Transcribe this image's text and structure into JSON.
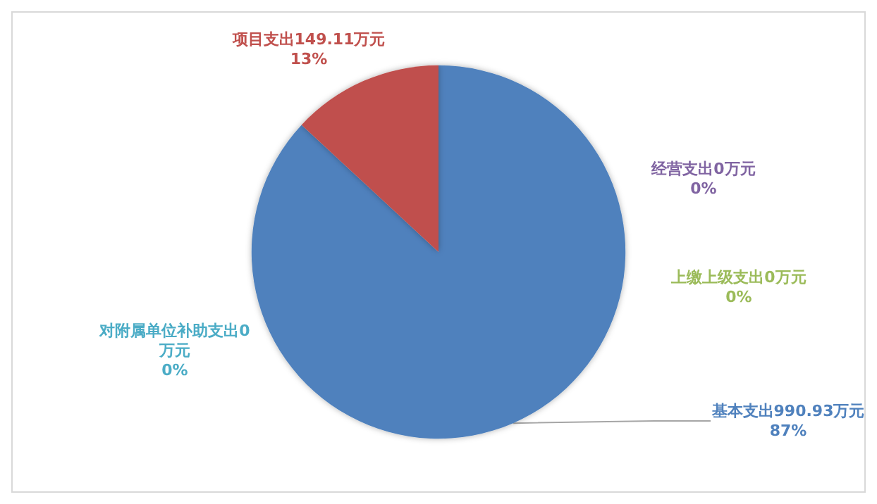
{
  "chart_data": {
    "type": "pie",
    "categories": [
      "基本支出",
      "项目支出",
      "经营支出",
      "上缴上级支出",
      "对附属单位补助支出"
    ],
    "values": [
      990.93,
      149.11,
      0,
      0,
      0
    ],
    "colors": [
      "#4f81bd",
      "#c0504d",
      "#8064a2",
      "#9bbb59",
      "#4bacc6"
    ],
    "value_labels": [
      "990.93万元\n87%",
      "149.11万元\n13%",
      "0万元\n0%",
      "0万元\n0%",
      "0万元\n0%"
    ],
    "legend": false
  }
}
